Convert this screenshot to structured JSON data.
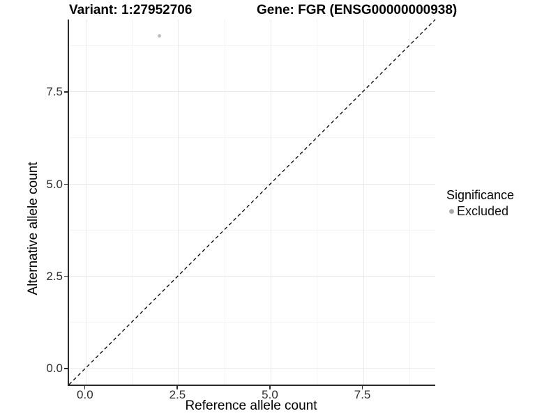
{
  "titles": {
    "variant": "Variant: 1:27952706",
    "gene": "Gene: FGR (ENSG00000000938)"
  },
  "legend": {
    "title": "Significance",
    "items": [
      {
        "label": "Excluded",
        "color": "#a8a8a8"
      }
    ]
  },
  "colors": {
    "point": "#bfbfbf",
    "reference_line": "#000000",
    "axis_line": "#2b2b2b",
    "grid_major": "#e9e9e9",
    "grid_minor": "#f4f4f4",
    "background": "#ffffff"
  },
  "chart_data": {
    "type": "scatter",
    "title": "Variant: 1:27952706   Gene: FGR (ENSG00000000938)",
    "xlabel": "Reference allele count",
    "ylabel": "Alternative allele count",
    "xlim": [
      -0.45,
      9.45
    ],
    "ylim": [
      -0.45,
      9.45
    ],
    "x_ticks": {
      "values": [
        0,
        2.5,
        5,
        7.5
      ],
      "labels": [
        "0.0",
        "2.5",
        "5.0",
        "7.5"
      ]
    },
    "y_ticks": {
      "values": [
        0,
        2.5,
        5,
        7.5
      ],
      "labels": [
        "0.0",
        "2.5",
        "5.0",
        "7.5"
      ]
    },
    "minor_ticks": [
      1.25,
      3.75,
      6.25,
      8.75
    ],
    "grid": true,
    "legend_position": "right",
    "series": [
      {
        "name": "Excluded",
        "color": "#bfbfbf",
        "point_radius_px": 2.5,
        "points": [
          {
            "x": 2,
            "y": 9
          }
        ]
      }
    ],
    "reference_line": {
      "type": "identity",
      "slope": 1,
      "intercept": 0,
      "style": "dashed",
      "color": "#000000"
    }
  }
}
